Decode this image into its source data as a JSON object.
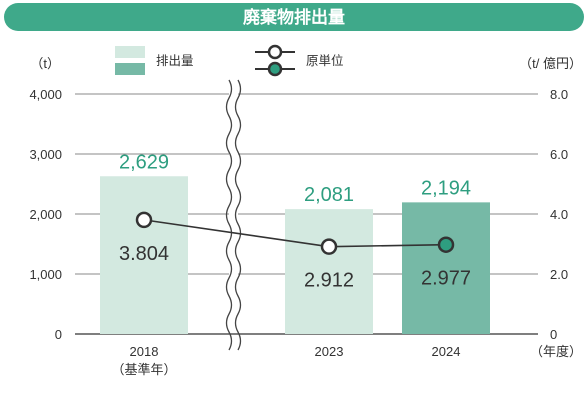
{
  "chart_data": {
    "type": "bar",
    "title": "廃棄物排出量",
    "legend": {
      "bar_label": "排出量",
      "line_label": "原単位"
    },
    "y_left_unit": "（t）",
    "y_right_unit": "（t/ 億円）",
    "x_unit": "（年度）",
    "categories": [
      "2018",
      "2023",
      "2024"
    ],
    "category_notes": [
      "（基準年）",
      "",
      ""
    ],
    "series": [
      {
        "name": "排出量",
        "type": "bar",
        "axis": "left",
        "values": [
          2629,
          2081,
          2194
        ],
        "value_labels": [
          "2,629",
          "2,081",
          "2,194"
        ],
        "colors": [
          "#d3e9e0",
          "#d3e9e0",
          "#76b9a6"
        ]
      },
      {
        "name": "原単位",
        "type": "line",
        "axis": "right",
        "values": [
          3.804,
          2.912,
          2.977
        ],
        "value_labels": [
          "3.804",
          "2.912",
          "2.977"
        ]
      }
    ],
    "y_left": {
      "min": 0,
      "max": 4000,
      "ticks": [
        0,
        1000,
        2000,
        3000,
        4000
      ],
      "tick_labels": [
        "0",
        "1,000",
        "2,000",
        "3,000",
        "4,000"
      ]
    },
    "y_right": {
      "min": 0,
      "max": 8,
      "ticks": [
        0,
        2,
        4,
        6,
        8
      ],
      "tick_labels": [
        "0",
        "2.0",
        "4.0",
        "6.0",
        "8.0"
      ]
    },
    "grid": true,
    "axis_break_between": [
      "2018",
      "2023"
    ],
    "colors": {
      "title_bg": "#3fa98a",
      "bar_light": "#d3e9e0",
      "bar_dark": "#76b9a6",
      "bar_value_text": "#2e9e80",
      "line": "#333333",
      "marker_dark_fill": "#2e9e80",
      "grid": "#888888"
    }
  }
}
